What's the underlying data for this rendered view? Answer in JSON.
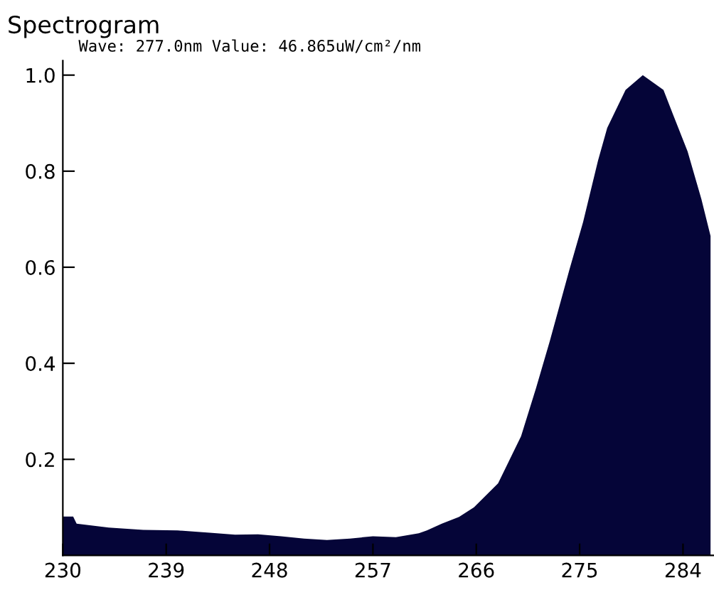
{
  "chart_data": {
    "type": "area",
    "title": "Spectrogram",
    "subtitle": "Wave: 277.0nm Value: 46.865uW/cm²/nm",
    "x": [
      230,
      230.9,
      231.2,
      234,
      237,
      240,
      243,
      245,
      247,
      249,
      251,
      253,
      255,
      257,
      259,
      261,
      261.7,
      263,
      264.5,
      265.8,
      267.9,
      269.9,
      271.2,
      272.4,
      274.1,
      275.3,
      276.6,
      277.4,
      279.0,
      280.5,
      282.3,
      283.1,
      284.4,
      285.6,
      286.4
    ],
    "series": [
      {
        "color": "#050538",
        "values": [
          0.081,
          0.081,
          0.066,
          0.058,
          0.053,
          0.052,
          0.047,
          0.043,
          0.044,
          0.04,
          0.035,
          0.032,
          0.035,
          0.04,
          0.038,
          0.046,
          0.052,
          0.066,
          0.08,
          0.1,
          0.15,
          0.248,
          0.348,
          0.446,
          0.594,
          0.694,
          0.822,
          0.89,
          0.969,
          1.0,
          0.969,
          0.92,
          0.841,
          0.742,
          0.665
        ]
      }
    ],
    "xlim": [
      230,
      286.7
    ],
    "ylim": [
      0,
      1.03
    ],
    "xticks": [
      230,
      239,
      248,
      257,
      266,
      275,
      284
    ],
    "yticks": [
      {
        "value": 0.2,
        "label": "0.2"
      },
      {
        "value": 0.4,
        "label": "0.4"
      },
      {
        "value": 0.6,
        "label": "0.6"
      },
      {
        "value": 0.8,
        "label": "0.8"
      },
      {
        "value": 1.0,
        "label": "1.0"
      }
    ],
    "grid": false,
    "legend": false
  }
}
